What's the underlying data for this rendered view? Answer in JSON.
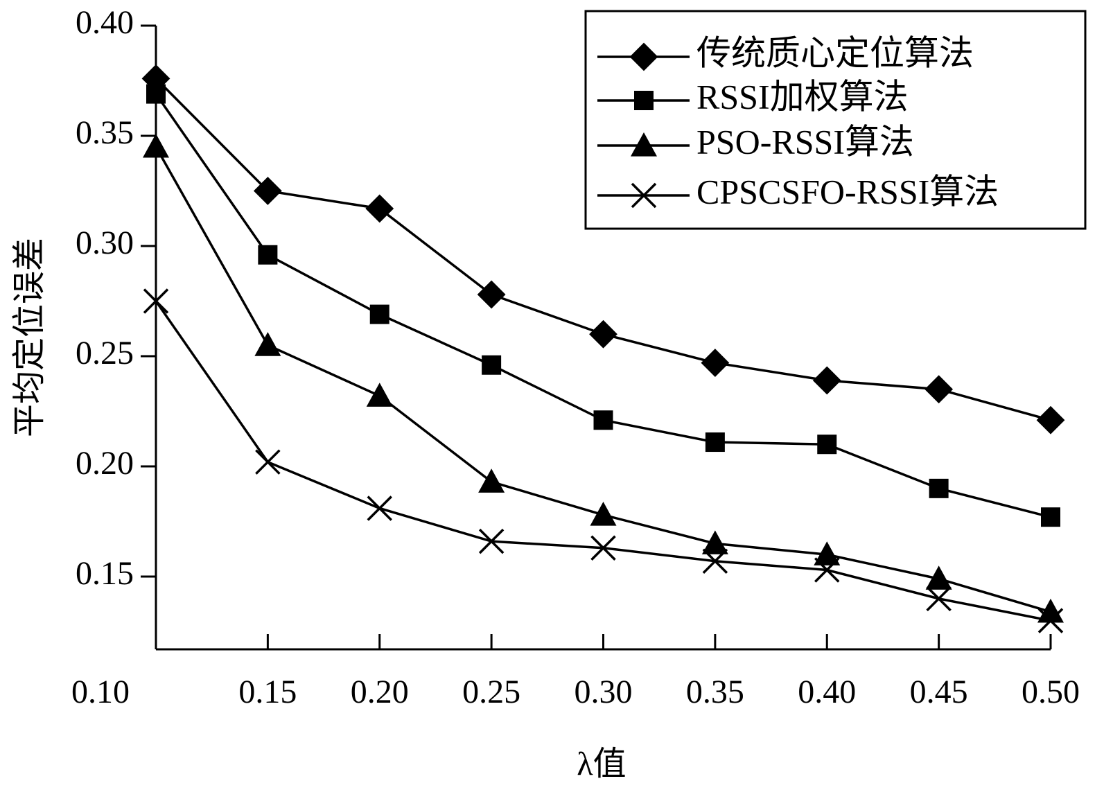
{
  "chart_data": {
    "type": "line",
    "xlabel": "λ值",
    "ylabel": "平均定位误差",
    "x": [
      0.1,
      0.15,
      0.2,
      0.25,
      0.3,
      0.35,
      0.4,
      0.45,
      0.5
    ],
    "x_tick_labels": [
      "0.10",
      "0.15",
      "0.20",
      "0.25",
      "0.30",
      "0.35",
      "0.40",
      "0.45",
      "0.50"
    ],
    "y_tick_labels": [
      "0.40",
      "0.35",
      "0.30",
      "0.25",
      "0.20",
      "0.15"
    ],
    "y_ticks": [
      0.4,
      0.35,
      0.3,
      0.25,
      0.2,
      0.15
    ],
    "xlim": [
      0.1,
      0.5
    ],
    "ylim": [
      0.117,
      0.4
    ],
    "grid": false,
    "legend_position": "top-right",
    "series": [
      {
        "name": "传统质心定位算法",
        "marker": "diamond",
        "values": [
          0.376,
          0.325,
          0.317,
          0.278,
          0.26,
          0.247,
          0.239,
          0.235,
          0.221
        ]
      },
      {
        "name": "RSSI加权算法",
        "marker": "square",
        "values": [
          0.369,
          0.296,
          0.269,
          0.246,
          0.221,
          0.211,
          0.21,
          0.19,
          0.177
        ]
      },
      {
        "name": "PSO-RSSI算法",
        "marker": "triangle",
        "values": [
          0.345,
          0.255,
          0.232,
          0.193,
          0.178,
          0.165,
          0.16,
          0.149,
          0.134
        ]
      },
      {
        "name": "CPSCSFO-RSSI算法",
        "marker": "x",
        "values": [
          0.275,
          0.202,
          0.181,
          0.166,
          0.163,
          0.157,
          0.153,
          0.14,
          0.13
        ]
      }
    ]
  }
}
